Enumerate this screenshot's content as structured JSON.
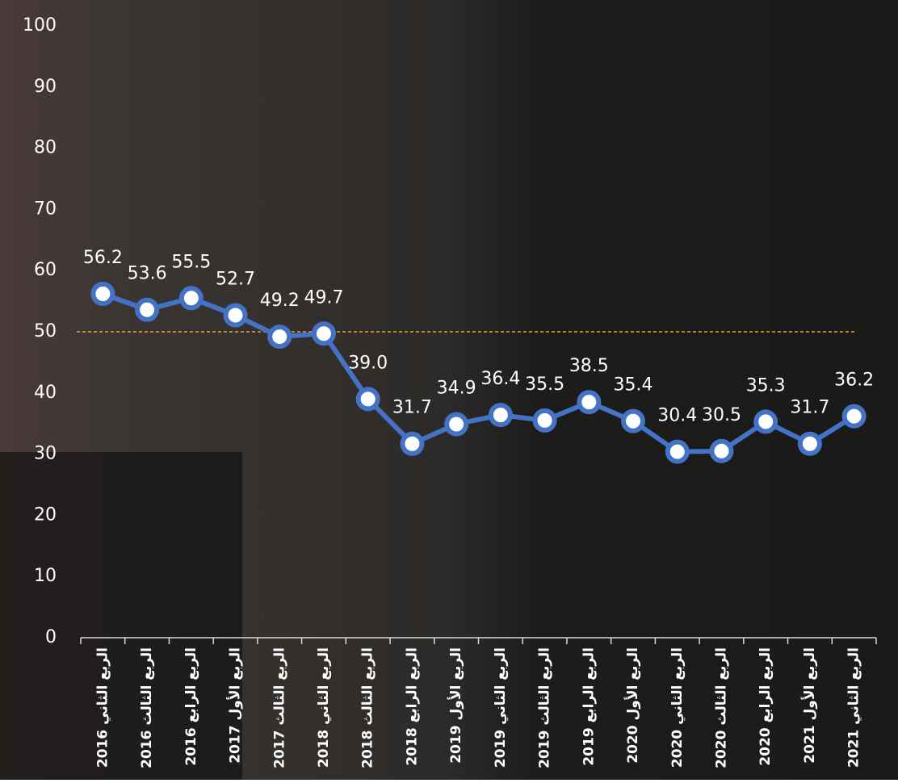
{
  "chart_data": {
    "type": "line",
    "categories": [
      "الربع الثاني 2016",
      "الربع الثالث 2016",
      "الربع الرابع 2016",
      "الربع الأول 2017",
      "الربع الثالث 2017",
      "الربع الثاني 2018",
      "الربع الثالث 2018",
      "الربع الرابع 2018",
      "الربع الأول 2019",
      "الربع الثاني 2019",
      "الربع الثالث 2019",
      "الربع الرابع 2019",
      "الربع الأول 2020",
      "الربع الثاني 2020",
      "الربع الثالث 2020",
      "الربع الرابع 2020",
      "الربع الأول 2021",
      "الربع الثاني 2021"
    ],
    "series": [
      {
        "color": "#4472c4",
        "values": [
          56.2,
          53.6,
          55.5,
          52.7,
          49.2,
          49.7,
          39.0,
          31.7,
          34.9,
          36.4,
          35.5,
          38.5,
          35.4,
          30.4,
          30.5,
          35.3,
          31.7,
          36.2
        ],
        "value_labels": [
          "56.2",
          "53.6",
          "55.5",
          "52.7",
          "49.2",
          "49.7",
          "39.0",
          "31.7",
          "34.9",
          "36.4",
          "35.5",
          "38.5",
          "35.4",
          "30.4",
          "30.5",
          "35.3",
          "31.7",
          "36.2"
        ]
      }
    ],
    "ylim": [
      0,
      100
    ],
    "yticks": [
      0,
      10,
      20,
      30,
      40,
      50,
      60,
      70,
      80,
      90,
      100
    ],
    "reference_line": {
      "value": 50,
      "color": "#e8a33a"
    }
  }
}
